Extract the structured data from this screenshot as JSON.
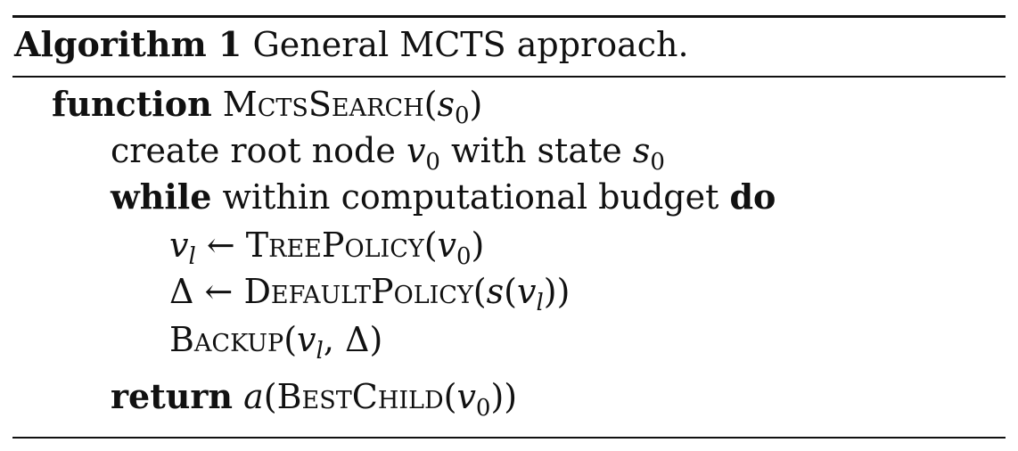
{
  "caption": {
    "label": "Algorithm 1",
    "title": " General MCTS approach."
  },
  "lines": {
    "l1": {
      "keyword": "function",
      "name": "MctsSearch",
      "open": "(",
      "arg_var": "s",
      "arg_sub": "0",
      "close": ")"
    },
    "l2": {
      "text1": "create root node ",
      "var1": "v",
      "sub1": "0",
      "text2": " with state ",
      "var2": "s",
      "sub2": "0"
    },
    "l3": {
      "kw1": "while",
      "text": " within computational budget ",
      "kw2": "do"
    },
    "l4": {
      "var": "v",
      "var_sub": "l",
      "arrow": " ← ",
      "func": "TreePolicy",
      "open": "(",
      "arg_var": "v",
      "arg_sub": "0",
      "close": ")"
    },
    "l5": {
      "delta": "Δ",
      "arrow": " ← ",
      "func": "DefaultPolicy",
      "open": "(",
      "inner_var": "s",
      "inner_open": "(",
      "arg_var": "v",
      "arg_sub": "l",
      "close": "))"
    },
    "l6": {
      "func": "Backup",
      "open": "(",
      "arg_var": "v",
      "arg_sub": "l",
      "comma": ", ",
      "delta": "Δ",
      "close": ")"
    },
    "l7": {
      "keyword": "return",
      "space": " ",
      "var": "a",
      "open": "(",
      "func": "BestChild",
      "inner_open": "(",
      "arg_var": "v",
      "arg_sub": "0",
      "close": "))"
    }
  }
}
